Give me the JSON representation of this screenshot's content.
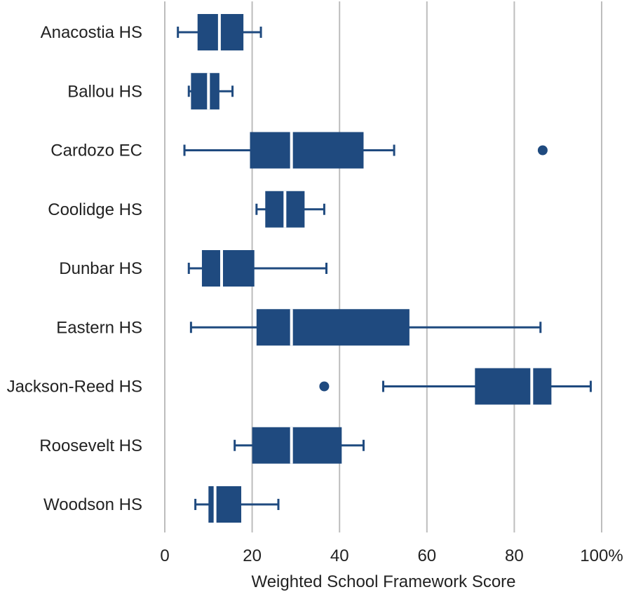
{
  "chart_data": {
    "type": "boxplot",
    "orientation": "horizontal",
    "xlabel": "Weighted School Framework Score",
    "xlim": [
      0,
      100
    ],
    "x_ticks": [
      0,
      20,
      40,
      60,
      80,
      100
    ],
    "x_tick_labels": [
      "0",
      "20",
      "40",
      "60",
      "80",
      "100%"
    ],
    "grid": "vertical",
    "color": "#1f4a7f",
    "categories": [
      "Anacostia HS",
      "Ballou HS",
      "Cardozo EC",
      "Coolidge HS",
      "Dunbar HS",
      "Eastern HS",
      "Jackson-Reed HS",
      "Roosevelt HS",
      "Woodson HS"
    ],
    "boxes": [
      {
        "min": 3,
        "q1": 7.5,
        "median": 12.5,
        "q3": 18,
        "max": 22,
        "outliers": []
      },
      {
        "min": 5.5,
        "q1": 6,
        "median": 10,
        "q3": 12.5,
        "max": 15.5,
        "outliers": []
      },
      {
        "min": 4.5,
        "q1": 19.5,
        "median": 29,
        "q3": 45.5,
        "max": 52.5,
        "outliers": [
          86.5
        ]
      },
      {
        "min": 21,
        "q1": 23,
        "median": 27.5,
        "q3": 32,
        "max": 36.5,
        "outliers": []
      },
      {
        "min": 5.5,
        "q1": 8.5,
        "median": 13,
        "q3": 20.5,
        "max": 37,
        "outliers": []
      },
      {
        "min": 6,
        "q1": 21,
        "median": 29,
        "q3": 56,
        "max": 86,
        "outliers": []
      },
      {
        "min": 50,
        "q1": 71,
        "median": 84,
        "q3": 88.5,
        "max": 97.5,
        "outliers": [
          36.5
        ]
      },
      {
        "min": 16,
        "q1": 20,
        "median": 29,
        "q3": 40.5,
        "max": 45.5,
        "outliers": []
      },
      {
        "min": 7,
        "q1": 10,
        "median": 11.5,
        "q3": 17.5,
        "max": 26,
        "outliers": []
      }
    ]
  }
}
